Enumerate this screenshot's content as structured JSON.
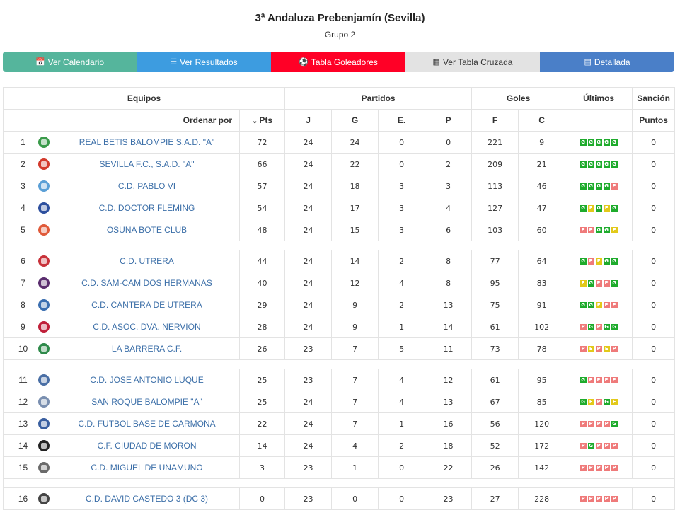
{
  "header": {
    "title": "3ª Andaluza Prebenjamín (Sevilla)",
    "subtitle": "Grupo 2"
  },
  "tabs": [
    {
      "label": "Ver Calendario",
      "icon": "calendar-icon"
    },
    {
      "label": "Ver Resultados",
      "icon": "list-icon"
    },
    {
      "label": "Tabla Goleadores",
      "icon": "soccer-ball-icon"
    },
    {
      "label": "Ver Tabla Cruzada",
      "icon": "grid-icon"
    },
    {
      "label": "Detallada",
      "icon": "table-icon"
    }
  ],
  "colors": {
    "tab_calendario": "#55b59c",
    "tab_resultados": "#3d9ce0",
    "tab_goleadores": "#ff0026",
    "tab_cruzada": "#e3e3e3",
    "tab_detallada": "#4a7fc8",
    "team_link": "#3c6fa8",
    "win": "#1eab2c",
    "draw": "#e2c91a",
    "loss": "#ef7a7a"
  },
  "table": {
    "headers": {
      "equipos": "Equipos",
      "partidos": "Partidos",
      "goles": "Goles",
      "ultimos": "Últimos",
      "sancion": "Sanción",
      "ordenar": "Ordenar por",
      "pts": "Pts",
      "j": "J",
      "g": "G",
      "e": "E.",
      "p": "P",
      "f": "F",
      "c": "C",
      "puntos": "Puntos"
    },
    "rows": [
      {
        "pos": "1",
        "team": "REAL BETIS BALOMPIE S.A.D. \"A\"",
        "crest": "#3a9a4a",
        "pts": "72",
        "j": "24",
        "g": "24",
        "e": "0",
        "p": "0",
        "f": "221",
        "c": "9",
        "form": [
          "G",
          "G",
          "G",
          "G",
          "G"
        ],
        "sancion": "0"
      },
      {
        "pos": "2",
        "team": "SEVILLA F.C., S.A.D. \"A\"",
        "crest": "#d33a2c",
        "pts": "66",
        "j": "24",
        "g": "22",
        "e": "0",
        "p": "2",
        "f": "209",
        "c": "21",
        "form": [
          "G",
          "G",
          "G",
          "G",
          "G"
        ],
        "sancion": "0"
      },
      {
        "pos": "3",
        "team": "C.D. PABLO VI",
        "crest": "#5a9fd6",
        "pts": "57",
        "j": "24",
        "g": "18",
        "e": "3",
        "p": "3",
        "f": "113",
        "c": "46",
        "form": [
          "G",
          "G",
          "G",
          "G",
          "P"
        ],
        "sancion": "0"
      },
      {
        "pos": "4",
        "team": "C.D. DOCTOR FLEMING",
        "crest": "#2d4f9e",
        "pts": "54",
        "j": "24",
        "g": "17",
        "e": "3",
        "p": "4",
        "f": "127",
        "c": "47",
        "form": [
          "G",
          "E",
          "G",
          "E",
          "G"
        ],
        "sancion": "0"
      },
      {
        "pos": "5",
        "team": "OSUNA BOTE CLUB",
        "crest": "#e05a3a",
        "pts": "48",
        "j": "24",
        "g": "15",
        "e": "3",
        "p": "6",
        "f": "103",
        "c": "60",
        "form": [
          "P",
          "P",
          "G",
          "G",
          "E"
        ],
        "sancion": "0"
      },
      {
        "gap": true
      },
      {
        "pos": "6",
        "team": "C.D. UTRERA",
        "crest": "#c8323a",
        "pts": "44",
        "j": "24",
        "g": "14",
        "e": "2",
        "p": "8",
        "f": "77",
        "c": "64",
        "form": [
          "G",
          "P",
          "E",
          "G",
          "G"
        ],
        "sancion": "0"
      },
      {
        "pos": "7",
        "team": "C.D. SAM-CAM DOS HERMANAS",
        "crest": "#5a2d6e",
        "pts": "40",
        "j": "24",
        "g": "12",
        "e": "4",
        "p": "8",
        "f": "95",
        "c": "83",
        "form": [
          "E",
          "G",
          "P",
          "P",
          "G"
        ],
        "sancion": "0"
      },
      {
        "pos": "8",
        "team": "C.D. CANTERA DE UTRERA",
        "crest": "#3b6fb0",
        "pts": "29",
        "j": "24",
        "g": "9",
        "e": "2",
        "p": "13",
        "f": "75",
        "c": "91",
        "form": [
          "G",
          "G",
          "E",
          "P",
          "P"
        ],
        "sancion": "0"
      },
      {
        "pos": "9",
        "team": "C.D. ASOC. DVA. NERVION",
        "crest": "#c0203a",
        "pts": "28",
        "j": "24",
        "g": "9",
        "e": "1",
        "p": "14",
        "f": "61",
        "c": "102",
        "form": [
          "P",
          "G",
          "P",
          "G",
          "G"
        ],
        "sancion": "0"
      },
      {
        "pos": "10",
        "team": "LA BARRERA C.F.",
        "crest": "#2e8a4a",
        "pts": "26",
        "j": "23",
        "g": "7",
        "e": "5",
        "p": "11",
        "f": "73",
        "c": "78",
        "form": [
          "P",
          "E",
          "P",
          "E",
          "P"
        ],
        "sancion": "0"
      },
      {
        "gap": true
      },
      {
        "pos": "11",
        "team": "C.D. JOSE ANTONIO LUQUE",
        "crest": "#4a6fa5",
        "pts": "25",
        "j": "23",
        "g": "7",
        "e": "4",
        "p": "12",
        "f": "61",
        "c": "95",
        "form": [
          "G",
          "P",
          "P",
          "P",
          "P"
        ],
        "sancion": "0"
      },
      {
        "pos": "12",
        "team": "SAN ROQUE BALOMPIE \"A\"",
        "crest": "#7a8fb0",
        "pts": "25",
        "j": "24",
        "g": "7",
        "e": "4",
        "p": "13",
        "f": "67",
        "c": "85",
        "form": [
          "G",
          "E",
          "P",
          "G",
          "E"
        ],
        "sancion": "0"
      },
      {
        "pos": "13",
        "team": "C.D. FUTBOL BASE DE CARMONA",
        "crest": "#3a5fa0",
        "pts": "22",
        "j": "24",
        "g": "7",
        "e": "1",
        "p": "16",
        "f": "56",
        "c": "120",
        "form": [
          "P",
          "P",
          "P",
          "P",
          "G"
        ],
        "sancion": "0"
      },
      {
        "pos": "14",
        "team": "C.F. CIUDAD DE MORON",
        "crest": "#222222",
        "pts": "14",
        "j": "24",
        "g": "4",
        "e": "2",
        "p": "18",
        "f": "52",
        "c": "172",
        "form": [
          "P",
          "G",
          "P",
          "P",
          "P"
        ],
        "sancion": "0"
      },
      {
        "pos": "15",
        "team": "C.D. MIGUEL DE UNAMUNO",
        "crest": "#6a6a6a",
        "pts": "3",
        "j": "23",
        "g": "1",
        "e": "0",
        "p": "22",
        "f": "26",
        "c": "142",
        "form": [
          "P",
          "P",
          "P",
          "P",
          "P"
        ],
        "sancion": "0"
      },
      {
        "gap": true
      },
      {
        "pos": "16",
        "team": "C.D. DAVID CASTEDO 3 (DC 3)",
        "crest": "#444444",
        "pts": "0",
        "j": "23",
        "g": "0",
        "e": "0",
        "p": "23",
        "f": "27",
        "c": "228",
        "form": [
          "P",
          "P",
          "P",
          "P",
          "P"
        ],
        "sancion": "0"
      }
    ]
  }
}
